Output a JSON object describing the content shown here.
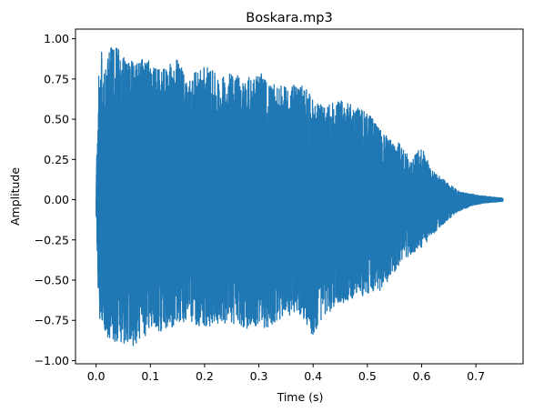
{
  "chart_data": {
    "type": "line",
    "title": "Boskara.mp3",
    "xlabel": "Time (s)",
    "ylabel": "Amplitude",
    "xlim": [
      -0.038,
      0.787
    ],
    "ylim": [
      -1.02,
      1.06
    ],
    "x_ticks": [
      {
        "value": 0.0,
        "label": "0.0"
      },
      {
        "value": 0.1,
        "label": "0.1"
      },
      {
        "value": 0.2,
        "label": "0.2"
      },
      {
        "value": 0.3,
        "label": "0.3"
      },
      {
        "value": 0.4,
        "label": "0.4"
      },
      {
        "value": 0.5,
        "label": "0.5"
      },
      {
        "value": 0.6,
        "label": "0.6"
      },
      {
        "value": 0.7,
        "label": "0.7"
      }
    ],
    "y_ticks": [
      {
        "value": 1.0,
        "label": "1.00"
      },
      {
        "value": 0.75,
        "label": "0.75"
      },
      {
        "value": 0.5,
        "label": "0.50"
      },
      {
        "value": 0.25,
        "label": "0.25"
      },
      {
        "value": 0.0,
        "label": "0.00"
      },
      {
        "value": -0.25,
        "label": "−0.25"
      },
      {
        "value": -0.5,
        "label": "−0.50"
      },
      {
        "value": -0.75,
        "label": "−0.75"
      },
      {
        "value": -1.0,
        "label": "−1.00"
      }
    ],
    "grid": false,
    "line_color": "#1f77b4",
    "series": [
      {
        "duration": 0.75,
        "envelope": [
          [
            0.0,
            0.1,
            -0.1
          ],
          [
            0.005,
            0.8,
            -0.75
          ],
          [
            0.01,
            0.95,
            -0.78
          ],
          [
            0.02,
            0.9,
            -0.85
          ],
          [
            0.03,
            0.98,
            -0.88
          ],
          [
            0.05,
            0.9,
            -0.9
          ],
          [
            0.07,
            0.85,
            -0.92
          ],
          [
            0.09,
            0.9,
            -0.85
          ],
          [
            0.1,
            0.85,
            -0.8
          ],
          [
            0.12,
            0.8,
            -0.82
          ],
          [
            0.15,
            0.88,
            -0.78
          ],
          [
            0.17,
            0.75,
            -0.76
          ],
          [
            0.2,
            0.85,
            -0.8
          ],
          [
            0.23,
            0.75,
            -0.76
          ],
          [
            0.25,
            0.82,
            -0.78
          ],
          [
            0.27,
            0.74,
            -0.8
          ],
          [
            0.3,
            0.8,
            -0.8
          ],
          [
            0.32,
            0.72,
            -0.8
          ],
          [
            0.35,
            0.7,
            -0.72
          ],
          [
            0.38,
            0.73,
            -0.73
          ],
          [
            0.4,
            0.62,
            -0.85
          ],
          [
            0.42,
            0.58,
            -0.72
          ],
          [
            0.45,
            0.62,
            -0.66
          ],
          [
            0.48,
            0.58,
            -0.6
          ],
          [
            0.5,
            0.55,
            -0.6
          ],
          [
            0.52,
            0.45,
            -0.58
          ],
          [
            0.54,
            0.38,
            -0.5
          ],
          [
            0.56,
            0.35,
            -0.4
          ],
          [
            0.58,
            0.25,
            -0.35
          ],
          [
            0.6,
            0.33,
            -0.3
          ],
          [
            0.62,
            0.18,
            -0.22
          ],
          [
            0.65,
            0.1,
            -0.12
          ],
          [
            0.67,
            0.05,
            -0.07
          ],
          [
            0.7,
            0.03,
            -0.03
          ],
          [
            0.72,
            0.02,
            -0.02
          ],
          [
            0.75,
            0.01,
            -0.01
          ]
        ]
      }
    ]
  }
}
